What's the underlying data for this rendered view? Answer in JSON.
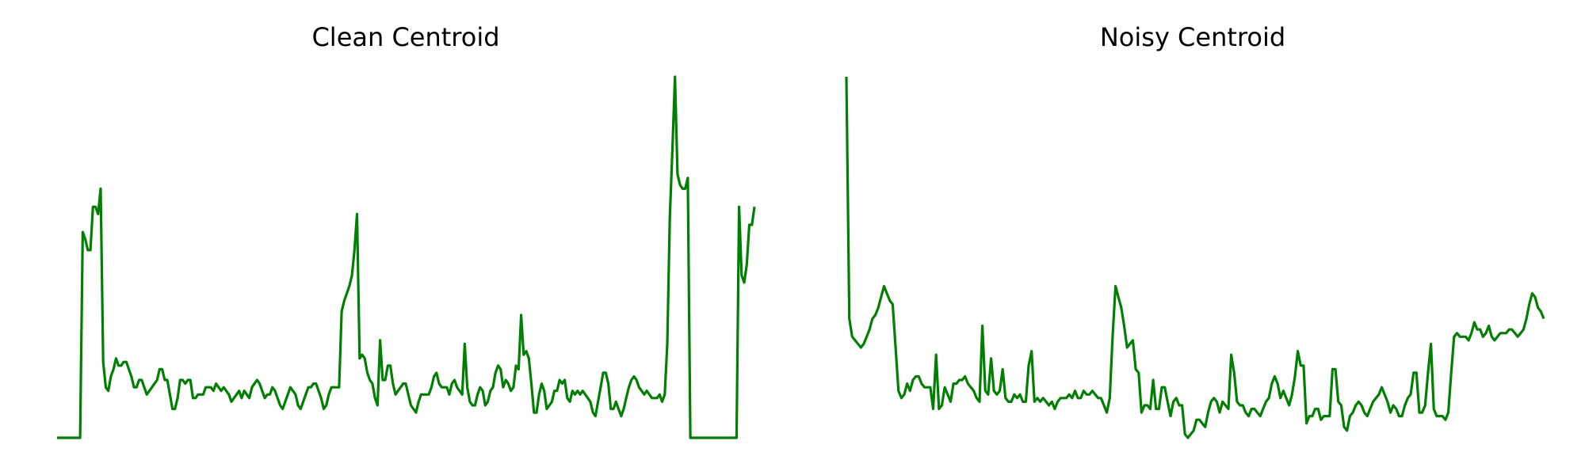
{
  "colors": {
    "line": "#008000",
    "background": "#ffffff"
  },
  "chart_data": [
    {
      "type": "line",
      "title": "Clean Centroid",
      "xlabel": "",
      "ylabel": "",
      "axes_visible": false,
      "grid": false,
      "xlim": [
        0,
        250
      ],
      "ylim": [
        0,
        1
      ],
      "series": [
        {
          "color": "#008000",
          "values": [
            0.0,
            0.0,
            0.0,
            0.0,
            0.0,
            0.0,
            0.0,
            0.0,
            0.0,
            0.0,
            0.57,
            0.55,
            0.52,
            0.52,
            0.64,
            0.64,
            0.62,
            0.69,
            0.21,
            0.14,
            0.13,
            0.17,
            0.19,
            0.22,
            0.2,
            0.2,
            0.21,
            0.21,
            0.19,
            0.17,
            0.14,
            0.14,
            0.16,
            0.16,
            0.14,
            0.12,
            0.13,
            0.14,
            0.15,
            0.16,
            0.19,
            0.19,
            0.16,
            0.16,
            0.12,
            0.08,
            0.08,
            0.11,
            0.16,
            0.16,
            0.15,
            0.16,
            0.16,
            0.11,
            0.11,
            0.12,
            0.12,
            0.12,
            0.14,
            0.14,
            0.14,
            0.13,
            0.15,
            0.14,
            0.13,
            0.14,
            0.13,
            0.12,
            0.1,
            0.11,
            0.12,
            0.13,
            0.11,
            0.13,
            0.12,
            0.11,
            0.14,
            0.15,
            0.16,
            0.15,
            0.13,
            0.11,
            0.12,
            0.12,
            0.14,
            0.13,
            0.11,
            0.09,
            0.08,
            0.1,
            0.12,
            0.14,
            0.13,
            0.12,
            0.09,
            0.08,
            0.1,
            0.12,
            0.14,
            0.14,
            0.15,
            0.15,
            0.13,
            0.11,
            0.08,
            0.09,
            0.12,
            0.14,
            0.14,
            0.14,
            0.14,
            0.35,
            0.38,
            0.4,
            0.42,
            0.45,
            0.52,
            0.62,
            0.22,
            0.23,
            0.22,
            0.18,
            0.16,
            0.15,
            0.11,
            0.09,
            0.27,
            0.16,
            0.16,
            0.2,
            0.2,
            0.15,
            0.12,
            0.13,
            0.14,
            0.15,
            0.15,
            0.12,
            0.09,
            0.08,
            0.07,
            0.1,
            0.12,
            0.12,
            0.12,
            0.12,
            0.14,
            0.17,
            0.18,
            0.15,
            0.14,
            0.14,
            0.14,
            0.12,
            0.15,
            0.16,
            0.14,
            0.13,
            0.12,
            0.26,
            0.14,
            0.1,
            0.09,
            0.09,
            0.12,
            0.14,
            0.13,
            0.09,
            0.1,
            0.13,
            0.14,
            0.18,
            0.2,
            0.19,
            0.14,
            0.16,
            0.15,
            0.13,
            0.14,
            0.2,
            0.19,
            0.34,
            0.23,
            0.24,
            0.22,
            0.15,
            0.07,
            0.07,
            0.12,
            0.15,
            0.13,
            0.08,
            0.09,
            0.1,
            0.13,
            0.13,
            0.16,
            0.15,
            0.16,
            0.11,
            0.1,
            0.13,
            0.12,
            0.13,
            0.12,
            0.13,
            0.12,
            0.11,
            0.1,
            0.07,
            0.06,
            0.1,
            0.14,
            0.18,
            0.18,
            0.15,
            0.08,
            0.08,
            0.1,
            0.08,
            0.06,
            0.08,
            0.11,
            0.14,
            0.16,
            0.17,
            0.16,
            0.14,
            0.13,
            0.12,
            0.13,
            0.12,
            0.11,
            0.11,
            0.11,
            0.12,
            0.1,
            0.12,
            0.26,
            0.61,
            0.8,
            1.0,
            0.73,
            0.7,
            0.69,
            0.69,
            0.72,
            0.0,
            0.0,
            0.0,
            0.0,
            0.0,
            0.0,
            0.0,
            0.0,
            0.0,
            0.0,
            0.0,
            0.0,
            0.0,
            0.0,
            0.0,
            0.0,
            0.0,
            0.0,
            0.0,
            0.64,
            0.45,
            0.43,
            0.48,
            0.59,
            0.59,
            0.64
          ]
        }
      ]
    },
    {
      "type": "line",
      "title": "Noisy Centroid",
      "xlabel": "",
      "ylabel": "",
      "axes_visible": false,
      "grid": false,
      "xlim": [
        0,
        250
      ],
      "ylim": [
        0,
        1
      ],
      "series": [
        {
          "color": "#008000",
          "values": [
            1.0,
            0.33,
            0.28,
            0.27,
            0.26,
            0.25,
            0.26,
            0.28,
            0.3,
            0.33,
            0.34,
            0.36,
            0.39,
            0.42,
            0.4,
            0.38,
            0.37,
            0.25,
            0.13,
            0.11,
            0.12,
            0.15,
            0.13,
            0.16,
            0.17,
            0.17,
            0.15,
            0.14,
            0.14,
            0.14,
            0.08,
            0.23,
            0.08,
            0.09,
            0.14,
            0.12,
            0.1,
            0.15,
            0.15,
            0.16,
            0.16,
            0.17,
            0.15,
            0.14,
            0.13,
            0.11,
            0.1,
            0.31,
            0.13,
            0.12,
            0.22,
            0.13,
            0.12,
            0.13,
            0.19,
            0.11,
            0.1,
            0.1,
            0.12,
            0.11,
            0.12,
            0.1,
            0.1,
            0.2,
            0.24,
            0.1,
            0.11,
            0.1,
            0.11,
            0.1,
            0.09,
            0.1,
            0.08,
            0.1,
            0.11,
            0.11,
            0.11,
            0.12,
            0.11,
            0.13,
            0.11,
            0.11,
            0.13,
            0.12,
            0.12,
            0.13,
            0.12,
            0.11,
            0.11,
            0.09,
            0.07,
            0.11,
            0.28,
            0.42,
            0.39,
            0.36,
            0.31,
            0.25,
            0.26,
            0.27,
            0.19,
            0.18,
            0.07,
            0.09,
            0.09,
            0.08,
            0.16,
            0.08,
            0.08,
            0.14,
            0.14,
            0.1,
            0.06,
            0.1,
            0.11,
            0.09,
            0.09,
            0.01,
            0.0,
            0.01,
            0.02,
            0.05,
            0.05,
            0.04,
            0.03,
            0.07,
            0.1,
            0.11,
            0.1,
            0.07,
            0.1,
            0.09,
            0.08,
            0.23,
            0.18,
            0.1,
            0.09,
            0.09,
            0.07,
            0.06,
            0.08,
            0.08,
            0.07,
            0.06,
            0.08,
            0.1,
            0.11,
            0.15,
            0.17,
            0.15,
            0.11,
            0.13,
            0.11,
            0.09,
            0.12,
            0.17,
            0.24,
            0.2,
            0.2,
            0.04,
            0.06,
            0.06,
            0.08,
            0.08,
            0.05,
            0.06,
            0.06,
            0.06,
            0.19,
            0.19,
            0.1,
            0.09,
            0.03,
            0.02,
            0.06,
            0.07,
            0.09,
            0.1,
            0.09,
            0.07,
            0.06,
            0.08,
            0.1,
            0.11,
            0.12,
            0.14,
            0.12,
            0.1,
            0.07,
            0.09,
            0.08,
            0.06,
            0.06,
            0.09,
            0.11,
            0.12,
            0.18,
            0.18,
            0.07,
            0.07,
            0.09,
            0.18,
            0.26,
            0.08,
            0.06,
            0.06,
            0.06,
            0.05,
            0.07,
            0.18,
            0.28,
            0.29,
            0.28,
            0.28,
            0.28,
            0.27,
            0.29,
            0.32,
            0.3,
            0.3,
            0.28,
            0.29,
            0.31,
            0.28,
            0.27,
            0.28,
            0.29,
            0.29,
            0.29,
            0.3,
            0.3,
            0.29,
            0.28,
            0.29,
            0.3,
            0.33,
            0.37,
            0.4,
            0.39,
            0.36,
            0.35,
            0.33
          ]
        }
      ]
    }
  ]
}
